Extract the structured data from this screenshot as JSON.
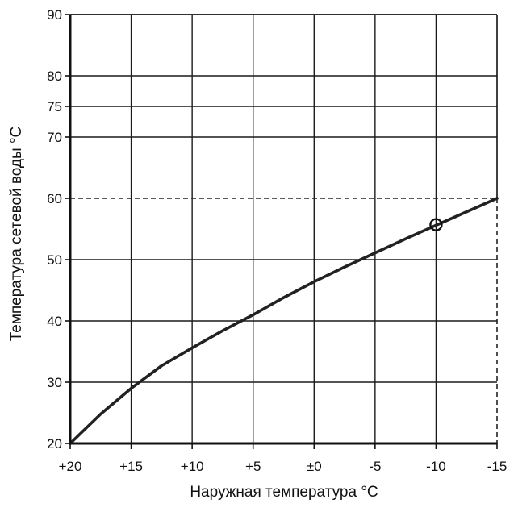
{
  "chart_data": {
    "type": "line",
    "title": "",
    "xlabel": "Наружная температура °C",
    "ylabel": "Температура сетевой воды °C",
    "xlim": [
      20,
      -15
    ],
    "ylim": [
      20,
      90
    ],
    "x_ticks": [
      {
        "value": 20,
        "label": "+20"
      },
      {
        "value": 15,
        "label": "+15"
      },
      {
        "value": 10,
        "label": "+10"
      },
      {
        "value": 5,
        "label": "+5"
      },
      {
        "value": 0,
        "label": "±0"
      },
      {
        "value": -5,
        "label": "-5"
      },
      {
        "value": -10,
        "label": "-10"
      },
      {
        "value": -15,
        "label": "-15"
      }
    ],
    "y_ticks": [
      {
        "value": 20,
        "label": "20"
      },
      {
        "value": 30,
        "label": "30"
      },
      {
        "value": 40,
        "label": "40"
      },
      {
        "value": 50,
        "label": "50"
      },
      {
        "value": 60,
        "label": "60"
      },
      {
        "value": 70,
        "label": "70"
      },
      {
        "value": 75,
        "label": "75"
      },
      {
        "value": 80,
        "label": "80"
      },
      {
        "value": 90,
        "label": "90"
      }
    ],
    "grid": true,
    "series": [
      {
        "x": [
          20,
          17.5,
          15,
          12.5,
          10,
          7.5,
          5,
          2.5,
          0,
          -2.5,
          -5,
          -7.5,
          -10,
          -12.5,
          -15
        ],
        "y": [
          20,
          24.8,
          29,
          32.7,
          35.6,
          38.4,
          41,
          43.8,
          46.4,
          48.8,
          51.1,
          53.4,
          55.6,
          57.8,
          60
        ],
        "color": "#222222"
      }
    ],
    "annotations": {
      "design_point": {
        "x": -10,
        "y": 55.7
      },
      "dashed_reference": {
        "x": -15,
        "y": 60
      }
    }
  }
}
